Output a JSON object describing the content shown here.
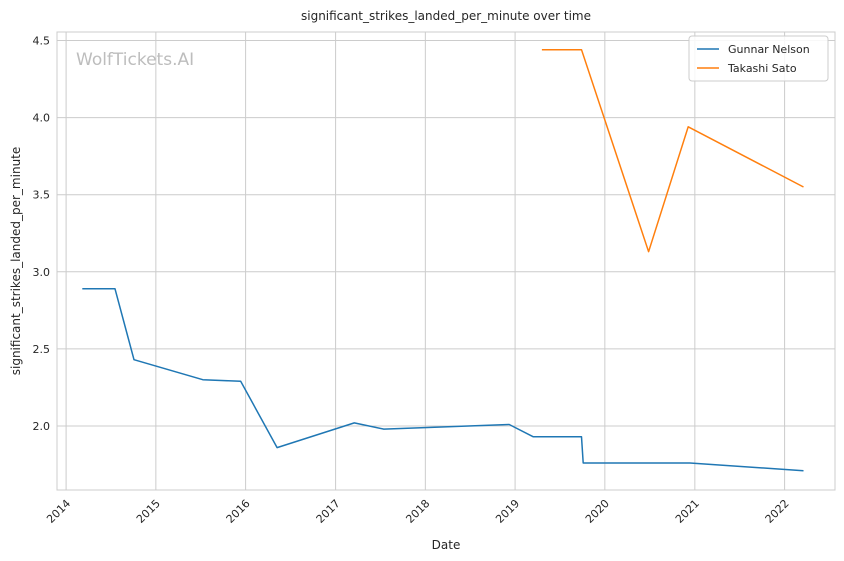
{
  "chart_data": {
    "type": "line",
    "title": "significant_strikes_landed_per_minute over time",
    "xlabel": "Date",
    "ylabel": "significant_strikes_landed_per_minute",
    "watermark": "WolfTickets.AI",
    "xlim": [
      "2013-11-25",
      "2022-07-25"
    ],
    "ylim": [
      1.585,
      4.555
    ],
    "x_ticks": [
      "2014",
      "2015",
      "2016",
      "2017",
      "2018",
      "2019",
      "2020",
      "2021",
      "2022"
    ],
    "y_ticks": [
      "2.0",
      "2.5",
      "3.0",
      "3.5",
      "4.0",
      "4.5"
    ],
    "grid": true,
    "legend_position": "top-right",
    "series": [
      {
        "name": "Gunnar Nelson",
        "color": "#1f77b4",
        "points": [
          {
            "x": "2014-03-08",
            "y": 2.89
          },
          {
            "x": "2014-07-19",
            "y": 2.89
          },
          {
            "x": "2014-10-04",
            "y": 2.43
          },
          {
            "x": "2015-07-11",
            "y": 2.3
          },
          {
            "x": "2015-12-12",
            "y": 2.29
          },
          {
            "x": "2016-05-08",
            "y": 1.86
          },
          {
            "x": "2017-03-18",
            "y": 2.02
          },
          {
            "x": "2017-07-16",
            "y": 1.98
          },
          {
            "x": "2018-12-08",
            "y": 2.01
          },
          {
            "x": "2019-03-16",
            "y": 1.93
          },
          {
            "x": "2019-09-28",
            "y": 1.93
          },
          {
            "x": "2019-10-05",
            "y": 1.76
          },
          {
            "x": "2020-12-12",
            "y": 1.76
          },
          {
            "x": "2022-03-19",
            "y": 1.71
          }
        ]
      },
      {
        "name": "Takashi Sato",
        "color": "#ff7f0e",
        "points": [
          {
            "x": "2019-04-20",
            "y": 4.44
          },
          {
            "x": "2019-09-28",
            "y": 4.44
          },
          {
            "x": "2020-06-27",
            "y": 3.13
          },
          {
            "x": "2020-12-05",
            "y": 3.94
          },
          {
            "x": "2022-03-19",
            "y": 3.55
          }
        ]
      }
    ]
  }
}
